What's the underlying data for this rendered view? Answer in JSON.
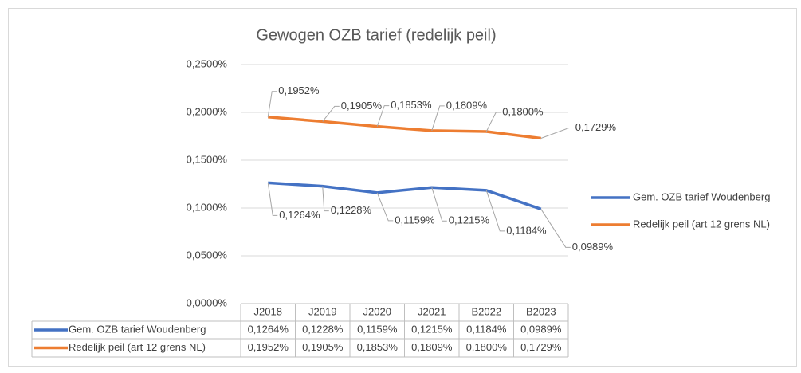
{
  "chart_data": {
    "type": "line",
    "title": "Gewogen OZB tarief (redelijk peil)",
    "categories": [
      "J2018",
      "J2019",
      "J2020",
      "J2021",
      "B2022",
      "B2023"
    ],
    "series": [
      {
        "name": "Gem. OZB tarief Woudenberg",
        "color": "#4472c4",
        "values": [
          0.1264,
          0.1228,
          0.1159,
          0.1215,
          0.1184,
          0.0989
        ],
        "value_labels": [
          "0,1264%",
          "0,1228%",
          "0,1159%",
          "0,1215%",
          "0,1184%",
          "0,0989%"
        ]
      },
      {
        "name": "Redelijk peil (art 12 grens NL)",
        "color": "#ed7d31",
        "values": [
          0.1952,
          0.1905,
          0.1853,
          0.1809,
          0.18,
          0.1729
        ],
        "value_labels": [
          "0,1952%",
          "0,1905%",
          "0,1853%",
          "0,1809%",
          "0,1800%",
          "0,1729%"
        ]
      }
    ],
    "ylim": [
      0,
      0.25
    ],
    "yticks": [
      {
        "value": 0,
        "label": "0,0000%"
      },
      {
        "value": 0.05,
        "label": "0,0500%"
      },
      {
        "value": 0.1,
        "label": "0,1000%"
      },
      {
        "value": 0.15,
        "label": "0,1500%"
      },
      {
        "value": 0.2,
        "label": "0,2000%"
      },
      {
        "value": 0.25,
        "label": "0,2500%"
      }
    ],
    "grid": true,
    "legend": "right",
    "data_table": true
  }
}
